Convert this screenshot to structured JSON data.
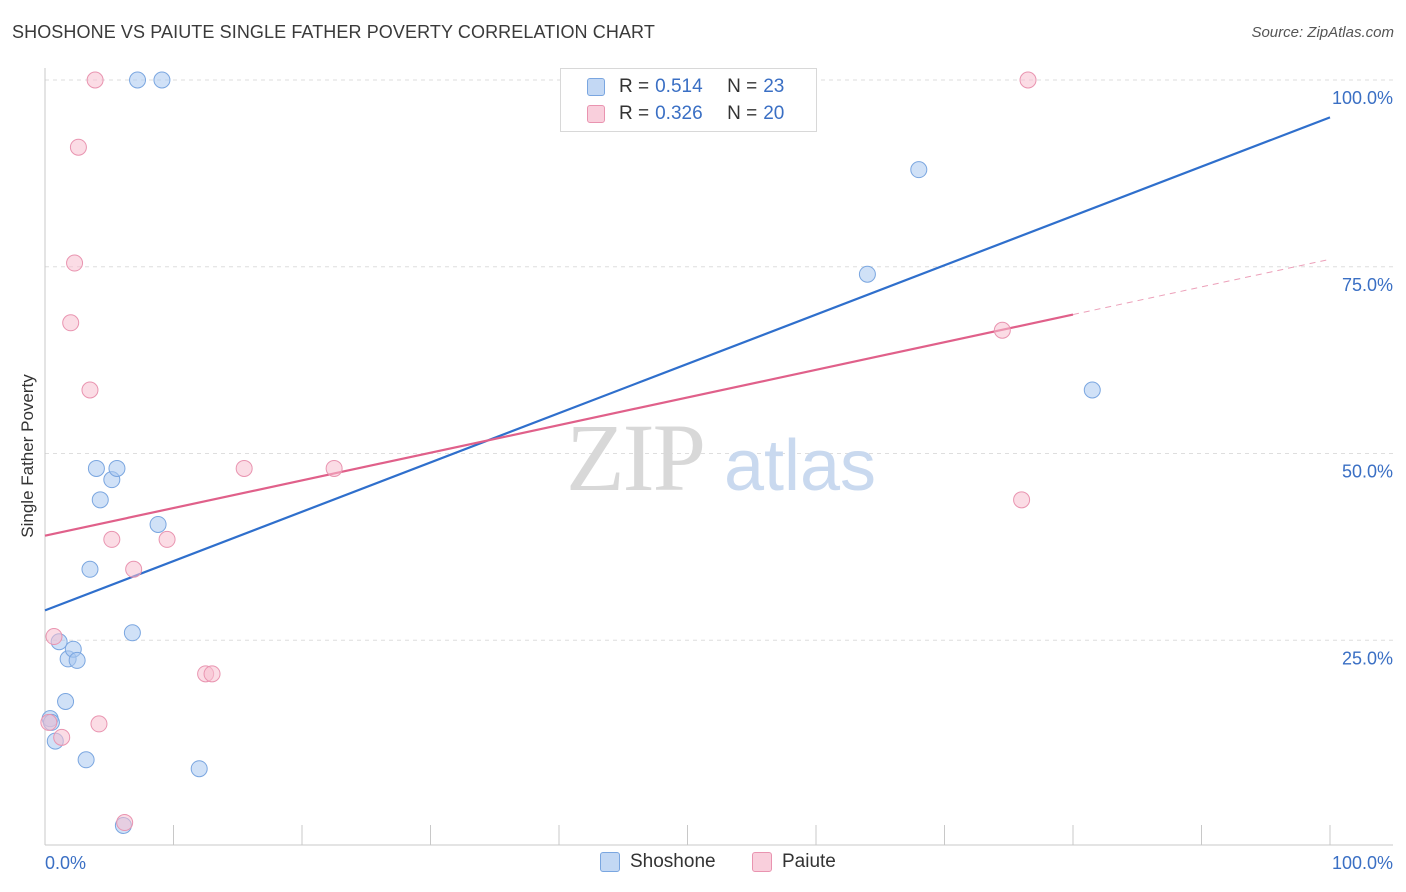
{
  "title": "SHOSHONE VS PAIUTE SINGLE FATHER POVERTY CORRELATION CHART",
  "source": "Source: ZipAtlas.com",
  "watermark": {
    "zip": "ZIP",
    "atlas": "atlas"
  },
  "legend_stats": [
    {
      "series": "Shoshone",
      "r_label": "R =",
      "r_value": "0.514",
      "n_label": "N =",
      "n_value": "23",
      "color": "#a9c8f0",
      "border": "#7aa6e0"
    },
    {
      "series": "Paiute",
      "r_label": "R =",
      "r_value": "0.326",
      "n_label": "N =",
      "n_value": "20",
      "color": "#f7bfd0",
      "border": "#e994b0"
    }
  ],
  "chart_data": {
    "type": "scatter",
    "title": "SHOSHONE VS PAIUTE SINGLE FATHER POVERTY CORRELATION CHART",
    "xlabel": "",
    "ylabel": "Single Father Poverty",
    "xlim": [
      0,
      100
    ],
    "ylim": [
      0,
      100
    ],
    "x_tick_labels": [
      "0.0%",
      "100.0%"
    ],
    "y_ticks": [
      25,
      50,
      75,
      100
    ],
    "y_tick_labels": [
      "25.0%",
      "50.0%",
      "75.0%",
      "100.0%"
    ],
    "grid": true,
    "series": [
      {
        "name": "Shoshone",
        "color": "#a9c8f0",
        "stroke": "#7aa6e0",
        "line_color": "#2f6fcc",
        "trend": {
          "x0": 0,
          "y0": 29.0,
          "x1": 100,
          "y1": 95.0,
          "solid_to": 100
        },
        "points": [
          [
            0.4,
            14.5
          ],
          [
            0.5,
            14.0
          ],
          [
            0.8,
            11.5
          ],
          [
            1.6,
            16.8
          ],
          [
            1.1,
            24.8
          ],
          [
            1.8,
            22.5
          ],
          [
            2.2,
            23.8
          ],
          [
            2.5,
            22.3
          ],
          [
            3.2,
            9.0
          ],
          [
            3.5,
            34.5
          ],
          [
            4.0,
            48.0
          ],
          [
            4.3,
            43.8
          ],
          [
            5.2,
            46.5
          ],
          [
            5.6,
            48.0
          ],
          [
            6.1,
            0.2
          ],
          [
            6.8,
            26.0
          ],
          [
            7.2,
            100.0
          ],
          [
            8.8,
            40.5
          ],
          [
            9.1,
            100.0
          ],
          [
            12.0,
            7.8
          ],
          [
            64.0,
            74.0
          ],
          [
            68.0,
            88.0
          ],
          [
            81.5,
            58.5
          ]
        ]
      },
      {
        "name": "Paiute",
        "color": "#f7bfd0",
        "stroke": "#e994b0",
        "line_color": "#e0608a",
        "trend": {
          "x0": 0,
          "y0": 39.0,
          "x1": 100,
          "y1": 76.0,
          "solid_to": 80
        },
        "points": [
          [
            0.3,
            14.0
          ],
          [
            0.7,
            25.5
          ],
          [
            1.3,
            12.0
          ],
          [
            2.0,
            67.5
          ],
          [
            2.3,
            75.5
          ],
          [
            2.6,
            91.0
          ],
          [
            3.5,
            58.5
          ],
          [
            3.9,
            100.0
          ],
          [
            4.2,
            13.8
          ],
          [
            5.2,
            38.5
          ],
          [
            6.2,
            0.6
          ],
          [
            6.9,
            34.5
          ],
          [
            9.5,
            38.5
          ],
          [
            12.5,
            20.5
          ],
          [
            13.0,
            20.5
          ],
          [
            15.5,
            48.0
          ],
          [
            22.5,
            48.0
          ],
          [
            74.5,
            66.5
          ],
          [
            76.0,
            43.8
          ],
          [
            76.5,
            100.0
          ]
        ]
      }
    ]
  }
}
